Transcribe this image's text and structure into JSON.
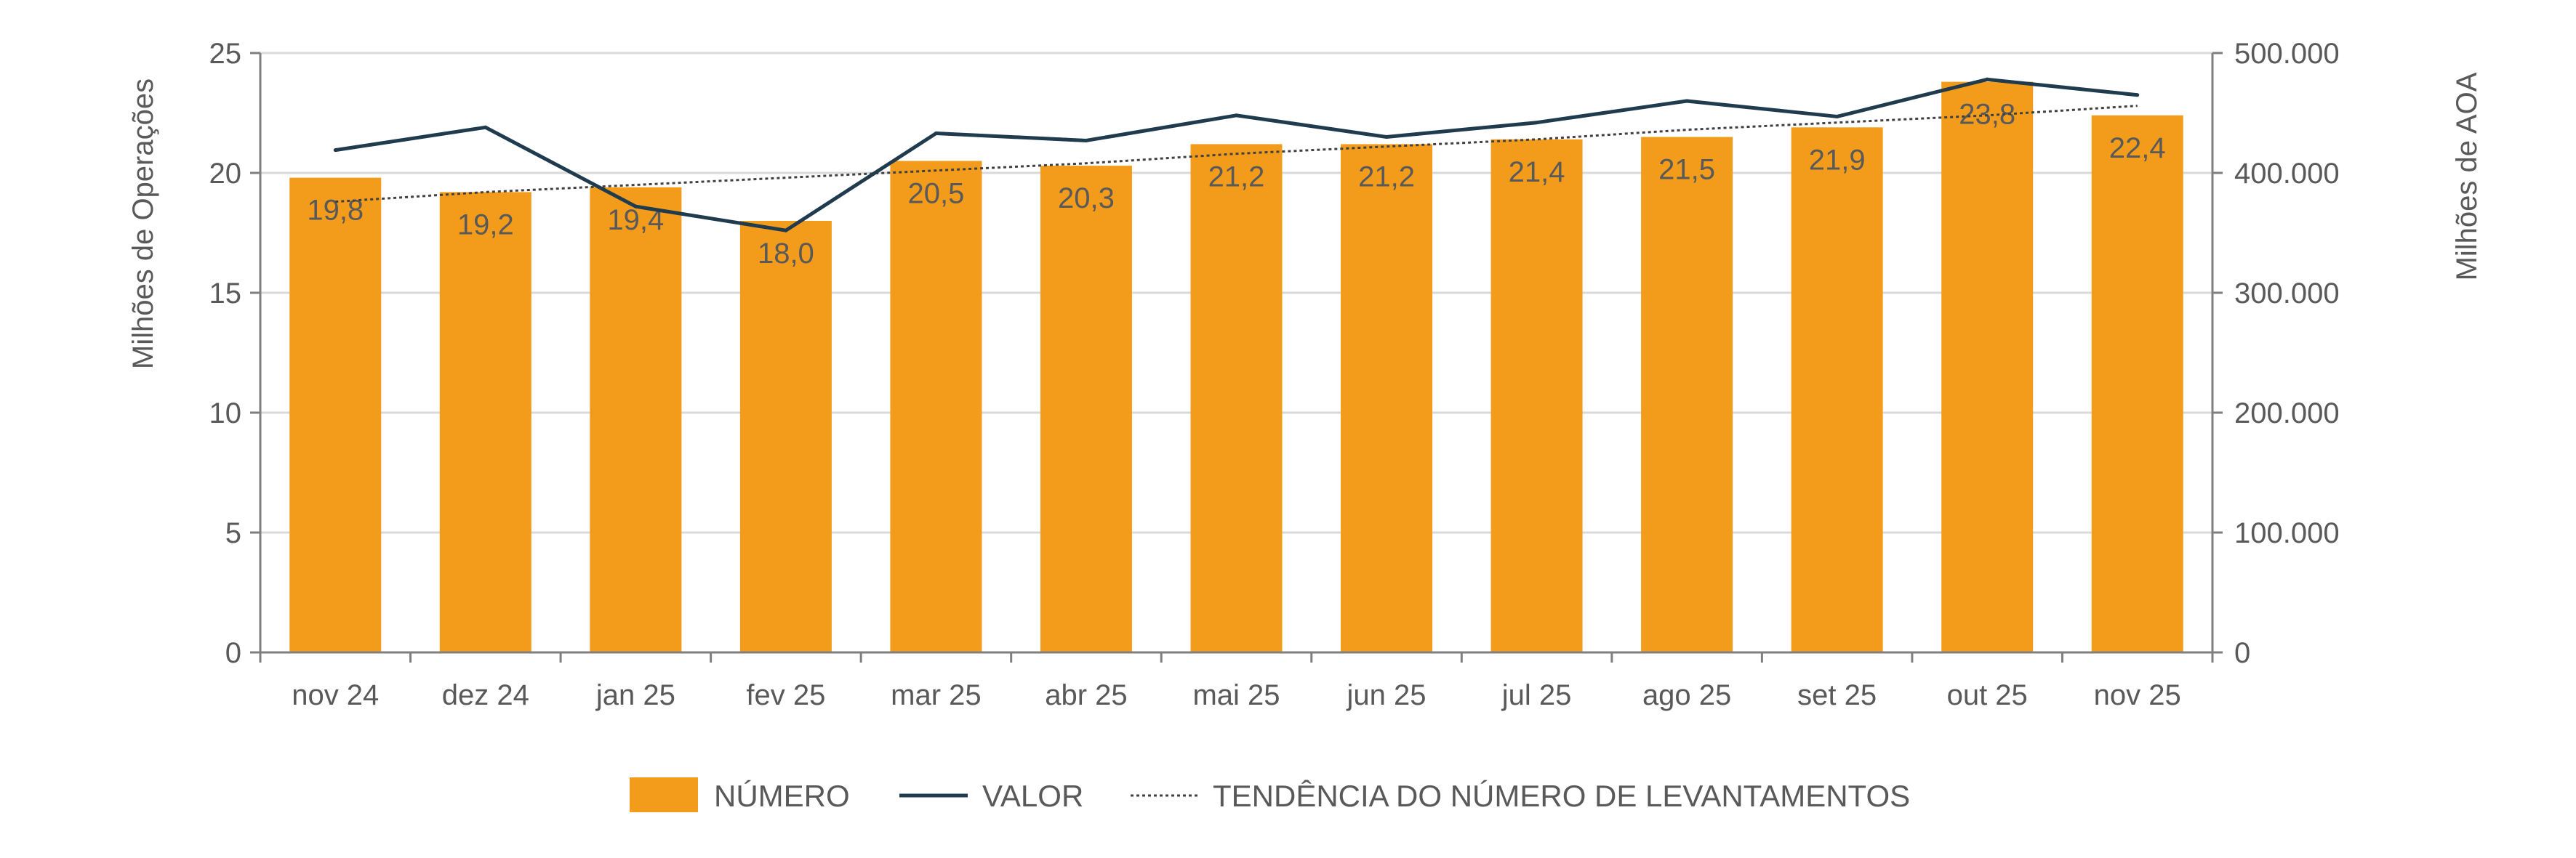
{
  "chart_data": {
    "type": "bar",
    "title": "",
    "categories": [
      "nov 24",
      "dez 24",
      "jan 25",
      "fev 25",
      "mar 25",
      "abr 25",
      "mai 25",
      "jun 25",
      "jul 25",
      "ago 25",
      "set 25",
      "out 25",
      "nov 25"
    ],
    "series": [
      {
        "name": "NÚMERO",
        "type": "bar",
        "axis": "left",
        "color": "#F39C1B",
        "values": [
          19.8,
          19.2,
          19.4,
          18.0,
          20.5,
          20.3,
          21.2,
          21.2,
          21.4,
          21.5,
          21.9,
          23.8,
          22.4
        ],
        "labels": [
          "19,8",
          "19,2",
          "19,4",
          "18,0",
          "20,5",
          "20,3",
          "21,2",
          "21,2",
          "21,4",
          "21,5",
          "21,9",
          "23,8",
          "22,4"
        ]
      },
      {
        "name": "VALOR",
        "type": "line",
        "axis": "right",
        "color": "#1F3B4D",
        "values": [
          419000,
          438000,
          372000,
          352000,
          433000,
          427000,
          448000,
          430000,
          442000,
          460000,
          447000,
          478000,
          465000
        ]
      },
      {
        "name": "TENDÊNCIA DO NÚMERO DE LEVANTAMENTOS",
        "type": "trendline",
        "axis": "left",
        "color": "#404040",
        "values": [
          18.8,
          19.2,
          19.5,
          19.8,
          20.1,
          20.4,
          20.8,
          21.1,
          21.4,
          21.8,
          22.1,
          22.4,
          22.8
        ]
      }
    ],
    "ylabel": "Milhões de Operações",
    "ylabel_right": "Milhões de AOA",
    "ylim": [
      0,
      25
    ],
    "ylim_right": [
      0,
      500000
    ],
    "yticks": [
      0,
      5,
      10,
      15,
      20,
      25
    ],
    "yticks_labels": [
      "0",
      "5",
      "10",
      "15",
      "20",
      "25"
    ],
    "yticks_right": [
      0,
      100000,
      200000,
      300000,
      400000,
      500000
    ],
    "yticks_right_labels": [
      "0",
      "100.000",
      "200.000",
      "300.000",
      "400.000",
      "500.000"
    ],
    "grid": true,
    "legend_position": "bottom"
  },
  "legend": {
    "bar_label": "NÚMERO",
    "line_label": "VALOR",
    "trend_label": "TENDÊNCIA DO NÚMERO DE LEVANTAMENTOS"
  }
}
